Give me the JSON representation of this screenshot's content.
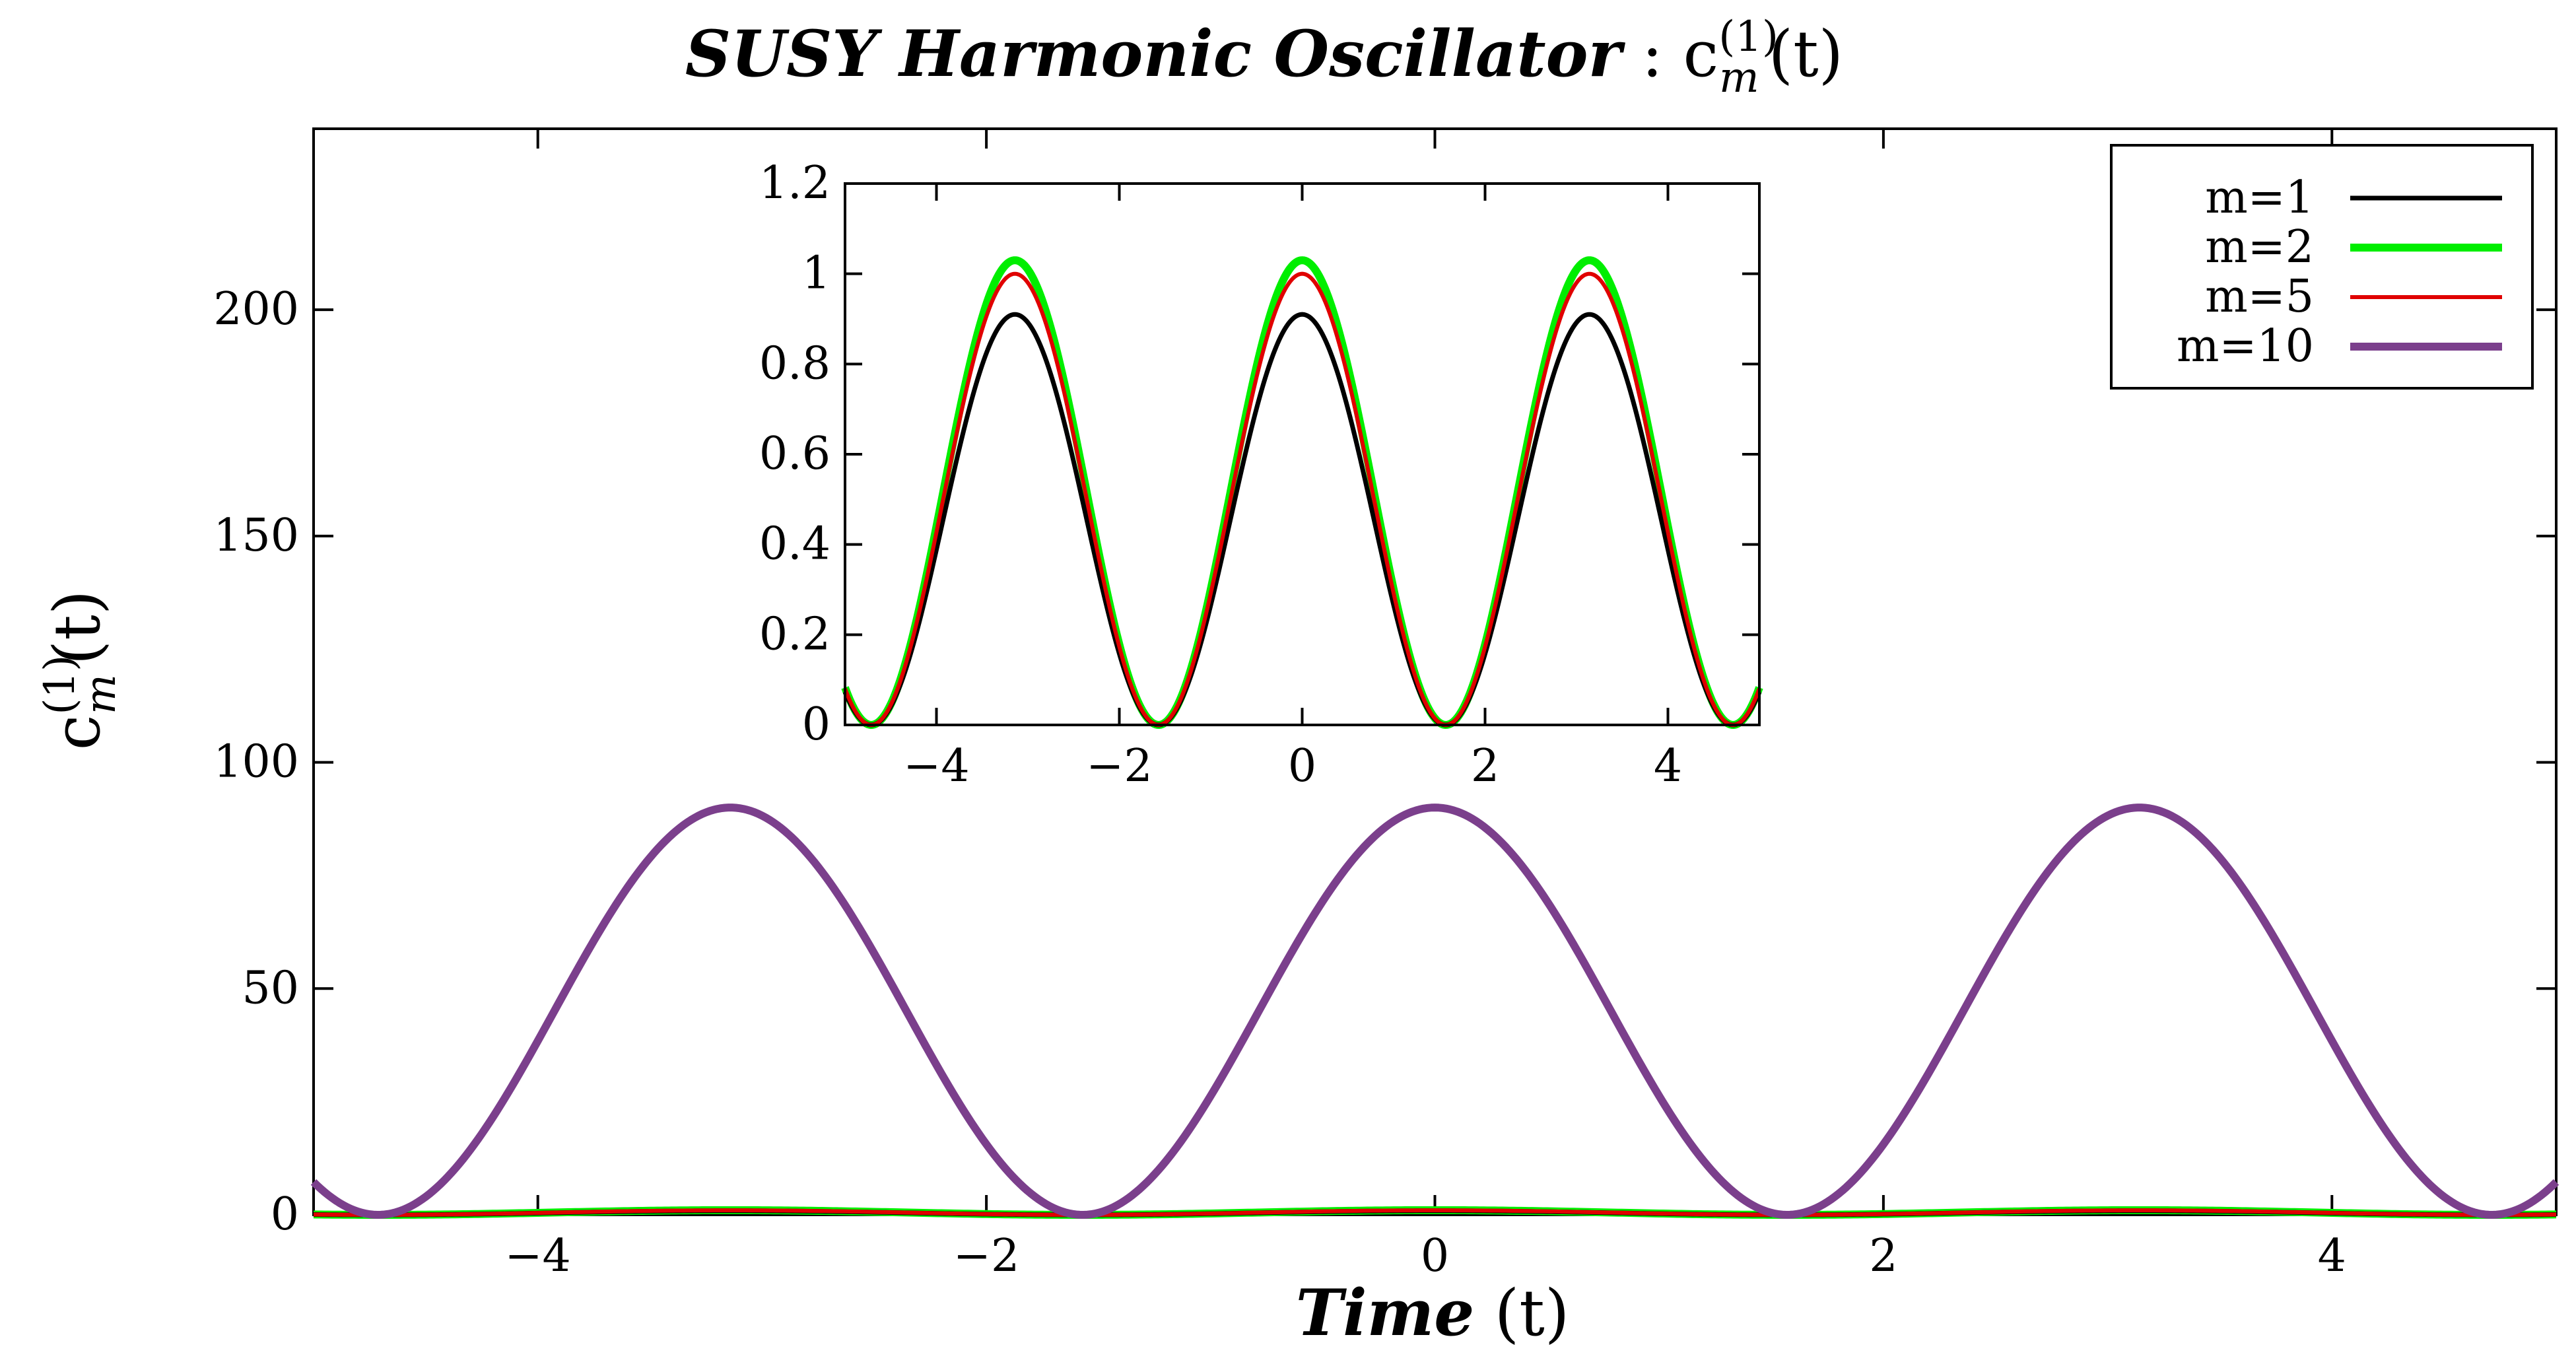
{
  "chart_data": {
    "type": "line",
    "title": {
      "main": "SUSY Harmonic Oscillator",
      "separator": " : ",
      "symbol": "c",
      "superscript": "(1)",
      "subscript": "m",
      "suffix": "(t)"
    },
    "xlabel": {
      "main": "Time",
      "suffix": " (t)"
    },
    "ylabel": {
      "symbol": "c",
      "superscript": "(1)",
      "subscript": "m",
      "suffix": "(t)"
    },
    "legend_position": "top-right",
    "grid": false,
    "main_plot": {
      "xlim": [
        -5,
        5
      ],
      "ylim": [
        0,
        240
      ],
      "x_ticks": [
        -4,
        -2,
        0,
        2,
        4
      ],
      "x_tick_labels": [
        "−4",
        "−2",
        "0",
        "2",
        "4"
      ],
      "y_ticks": [
        0,
        50,
        100,
        150,
        200
      ],
      "y_tick_labels": [
        "0",
        "50",
        "100",
        "150",
        "200"
      ]
    },
    "inset_plot": {
      "xlim": [
        -5,
        5
      ],
      "ylim": [
        0,
        1.2
      ],
      "x_ticks": [
        -4,
        -2,
        0,
        2,
        4
      ],
      "x_tick_labels": [
        "−4",
        "−2",
        "0",
        "2",
        "4"
      ],
      "y_ticks": [
        0,
        0.2,
        0.4,
        0.6,
        0.8,
        1.0,
        1.2
      ],
      "y_tick_labels": [
        "0",
        "0.2",
        "0.4",
        "0.6",
        "0.8",
        "1",
        "1.2"
      ],
      "series_shown": [
        "m=1",
        "m=2",
        "m=5"
      ]
    },
    "series": [
      {
        "name": "m=1",
        "color": "#000000",
        "amplitude": 0.91,
        "function": "A*cos^2(t)"
      },
      {
        "name": "m=2",
        "color": "#00ee00",
        "amplitude": 1.03,
        "function": "A*cos^2(t)"
      },
      {
        "name": "m=5",
        "color": "#e00000",
        "amplitude": 1.0,
        "function": "A*cos^2(t)"
      },
      {
        "name": "m=10",
        "color": "#7b3f8c",
        "amplitude": 90,
        "function": "A*cos^2(t)"
      }
    ]
  }
}
